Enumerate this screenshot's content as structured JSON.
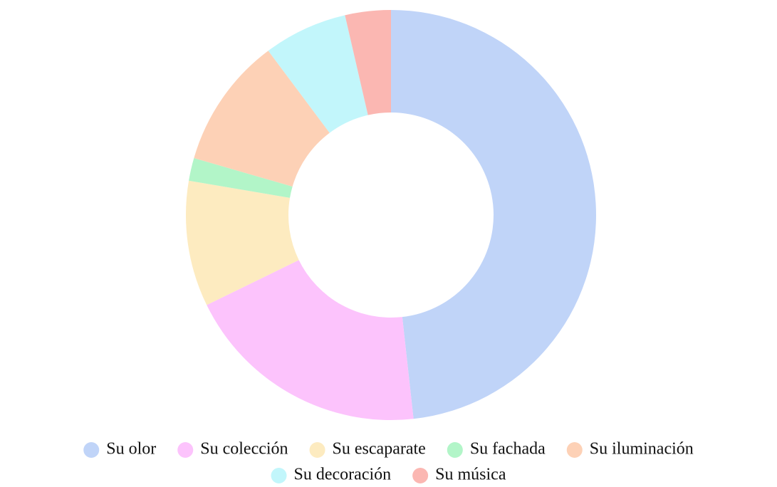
{
  "chart_data": {
    "type": "donut",
    "categories": [
      "Su olor",
      "Su colección",
      "Su escaparate",
      "Su fachada",
      "Su iluminación",
      "Su decoración",
      "Su música"
    ],
    "values": [
      48.2,
      19.5,
      9.9,
      1.8,
      10.3,
      6.6,
      3.6
    ],
    "colors": [
      "#c0d4f8",
      "#fcc3fc",
      "#fdebc0",
      "#b2f5c8",
      "#fdd1b6",
      "#c2f6fb",
      "#fbb7b2"
    ],
    "legend": "bottom"
  }
}
